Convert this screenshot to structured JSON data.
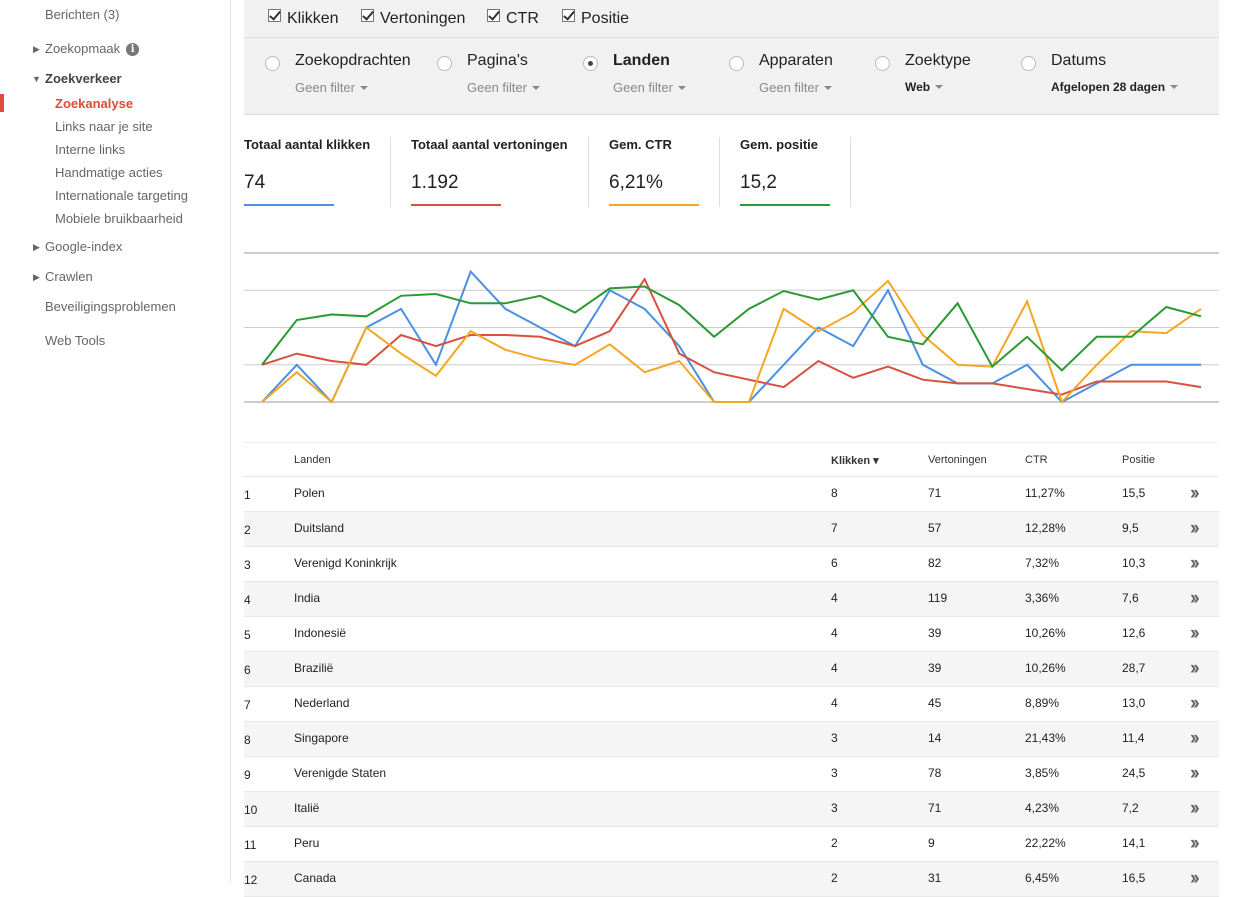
{
  "sidebar": {
    "berichten": "Berichten (3)",
    "zoekopmaak": "Zoekopmaak",
    "zoekverkeer": "Zoekverkeer",
    "sub": [
      "Zoekanalyse",
      "Links naar je site",
      "Interne links",
      "Handmatige acties",
      "Internationale targeting",
      "Mobiele bruikbaarheid"
    ],
    "google_index": "Google-index",
    "crawlen": "Crawlen",
    "beveiliging": "Beveiligingsproblemen",
    "web_tools": "Web Tools"
  },
  "checks": [
    "Klikken",
    "Vertoningen",
    "CTR",
    "Positie"
  ],
  "dimensions": [
    {
      "label": "Zoekopdrachten",
      "sub": "Geen filter"
    },
    {
      "label": "Pagina's",
      "sub": "Geen filter"
    },
    {
      "label": "Landen",
      "sub": "Geen filter"
    },
    {
      "label": "Apparaten",
      "sub": "Geen filter"
    },
    {
      "label": "Zoektype",
      "sub": "Web"
    },
    {
      "label": "Datums",
      "sub": "Afgelopen 28 dagen"
    }
  ],
  "metrics": [
    {
      "label": "Totaal aantal klikken",
      "value": "74",
      "color": "#4a90e2"
    },
    {
      "label": "Totaal aantal vertoningen",
      "value": "1.192",
      "color": "#d9503f"
    },
    {
      "label": "Gem. CTR",
      "value": "6,21%",
      "color": "#f5a623"
    },
    {
      "label": "Gem. positie",
      "value": "15,2",
      "color": "#2a9a33"
    }
  ],
  "chart_data": {
    "type": "line",
    "ylim": [
      0,
      4
    ],
    "grid": true,
    "series": [
      {
        "color": "#4a90e2",
        "values": [
          0,
          1,
          0,
          2,
          2.5,
          1,
          3.5,
          2.5,
          2,
          1.5,
          3,
          2.5,
          1.5,
          0,
          0,
          1,
          2,
          1.5,
          3,
          1,
          0.5,
          0.5,
          1,
          0,
          0.5,
          1,
          1,
          1
        ]
      },
      {
        "color": "#d9503f",
        "values": [
          1,
          1.3,
          1.1,
          1,
          1.8,
          1.5,
          1.8,
          1.8,
          1.75,
          1.5,
          1.9,
          3.3,
          1.3,
          0.8,
          0.6,
          0.4,
          1.1,
          0.65,
          0.95,
          0.6,
          0.5,
          0.5,
          0.35,
          0.2,
          0.55,
          0.55,
          0.55,
          0.4
        ]
      },
      {
        "color": "#f5a623",
        "values": [
          0,
          0.8,
          0,
          2,
          1.3,
          0.7,
          1.9,
          1.4,
          1.15,
          1,
          1.55,
          0.8,
          1.1,
          0,
          0,
          2.5,
          1.9,
          2.4,
          3.25,
          1.8,
          1,
          0.95,
          2.7,
          0,
          1,
          1.9,
          1.85,
          2.5
        ]
      },
      {
        "color": "#2a9a33",
        "values": [
          1,
          2.2,
          2.35,
          2.3,
          2.85,
          2.9,
          2.65,
          2.65,
          2.85,
          2.4,
          3.05,
          3.1,
          2.6,
          1.75,
          2.5,
          2.98,
          2.75,
          3,
          1.75,
          1.55,
          2.65,
          0.95,
          1.75,
          0.85,
          1.75,
          1.75,
          2.55,
          2.3
        ]
      }
    ]
  },
  "table": {
    "headers": {
      "landen": "Landen",
      "klikken": "Klikken ▾",
      "vertoningen": "Vertoningen",
      "ctr": "CTR",
      "positie": "Positie"
    },
    "rows": [
      {
        "idx": "1",
        "land": "Polen",
        "klikken": "8",
        "vertoningen": "71",
        "ctr": "11,27%",
        "positie": "15,5"
      },
      {
        "idx": "2",
        "land": "Duitsland",
        "klikken": "7",
        "vertoningen": "57",
        "ctr": "12,28%",
        "positie": "9,5"
      },
      {
        "idx": "3",
        "land": "Verenigd Koninkrijk",
        "klikken": "6",
        "vertoningen": "82",
        "ctr": "7,32%",
        "positie": "10,3"
      },
      {
        "idx": "4",
        "land": "India",
        "klikken": "4",
        "vertoningen": "119",
        "ctr": "3,36%",
        "positie": "7,6"
      },
      {
        "idx": "5",
        "land": "Indonesië",
        "klikken": "4",
        "vertoningen": "39",
        "ctr": "10,26%",
        "positie": "12,6"
      },
      {
        "idx": "6",
        "land": "Brazilië",
        "klikken": "4",
        "vertoningen": "39",
        "ctr": "10,26%",
        "positie": "28,7"
      },
      {
        "idx": "7",
        "land": "Nederland",
        "klikken": "4",
        "vertoningen": "45",
        "ctr": "8,89%",
        "positie": "13,0"
      },
      {
        "idx": "8",
        "land": "Singapore",
        "klikken": "3",
        "vertoningen": "14",
        "ctr": "21,43%",
        "positie": "11,4"
      },
      {
        "idx": "9",
        "land": "Verenigde Staten",
        "klikken": "3",
        "vertoningen": "78",
        "ctr": "3,85%",
        "positie": "24,5"
      },
      {
        "idx": "10",
        "land": "Italië",
        "klikken": "3",
        "vertoningen": "71",
        "ctr": "4,23%",
        "positie": "7,2"
      },
      {
        "idx": "11",
        "land": "Peru",
        "klikken": "2",
        "vertoningen": "9",
        "ctr": "22,22%",
        "positie": "14,1"
      },
      {
        "idx": "12",
        "land": "Canada",
        "klikken": "2",
        "vertoningen": "31",
        "ctr": "6,45%",
        "positie": "16,5"
      }
    ]
  }
}
